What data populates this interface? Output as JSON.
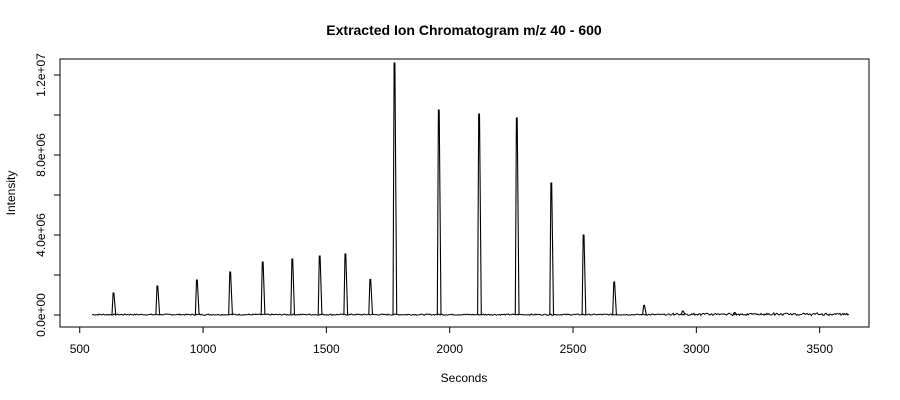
{
  "chart_data": {
    "type": "line",
    "title": "Extracted Ion Chromatogram  m/z  40 - 600",
    "xlabel": "Seconds",
    "ylabel": "Intensity",
    "xlim": [
      420,
      3700
    ],
    "ylim": [
      -600000,
      12800000
    ],
    "x_ticks": [
      500,
      1000,
      1500,
      2000,
      2500,
      3000,
      3500
    ],
    "x_tick_labels": [
      "500",
      "1000",
      "1500",
      "2000",
      "2500",
      "3000",
      "3500"
    ],
    "y_ticks": [
      0,
      2000000,
      4000000,
      6000000,
      8000000,
      10000000,
      12000000
    ],
    "y_tick_labels": [
      "0.0e+00",
      "",
      "4.0e+06",
      "",
      "8.0e+06",
      "",
      "1.2e+07"
    ],
    "baseline": {
      "x_start": 550,
      "x_end": 3620,
      "intensity": 20000
    },
    "series": [
      {
        "peaks": [
          {
            "x": 637,
            "y": 1100000
          },
          {
            "x": 815,
            "y": 1450000
          },
          {
            "x": 975,
            "y": 1750000
          },
          {
            "x": 1110,
            "y": 2150000
          },
          {
            "x": 1242,
            "y": 2650000
          },
          {
            "x": 1362,
            "y": 2800000
          },
          {
            "x": 1473,
            "y": 2950000
          },
          {
            "x": 1577,
            "y": 3050000
          },
          {
            "x": 1678,
            "y": 1780000
          },
          {
            "x": 1776,
            "y": 12600000
          },
          {
            "x": 1956,
            "y": 10250000
          },
          {
            "x": 2119,
            "y": 10050000
          },
          {
            "x": 2272,
            "y": 9850000
          },
          {
            "x": 2412,
            "y": 6600000
          },
          {
            "x": 2543,
            "y": 4000000
          },
          {
            "x": 2667,
            "y": 1650000
          },
          {
            "x": 2788,
            "y": 480000
          },
          {
            "x": 2945,
            "y": 200000
          },
          {
            "x": 3155,
            "y": 120000
          }
        ]
      }
    ],
    "grid": false,
    "colors": {
      "line": "#000000",
      "axes": "#000000"
    }
  }
}
